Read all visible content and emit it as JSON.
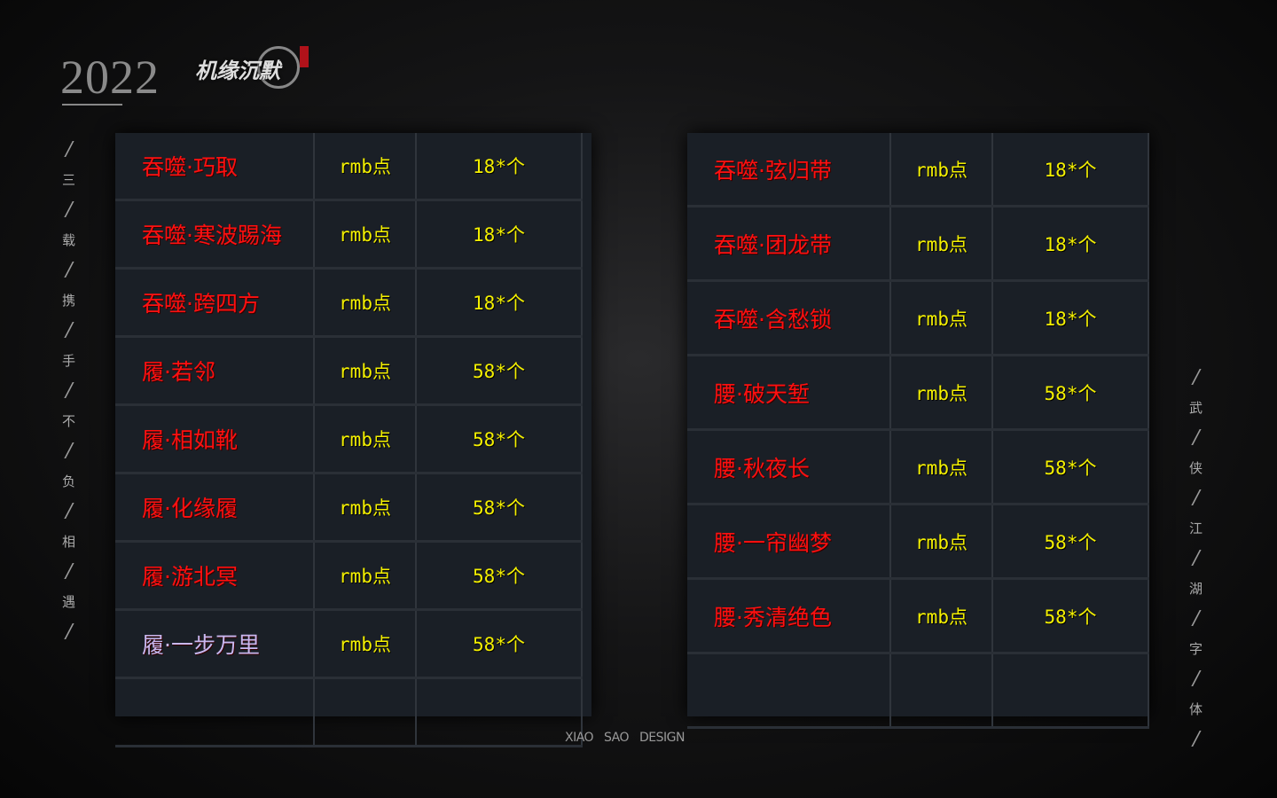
{
  "header": {
    "year": "2022",
    "logo_text": "机缘沉默"
  },
  "left_side_text": [
    "三",
    "载",
    "携",
    "手",
    "不",
    "负",
    "相",
    "遇"
  ],
  "right_side_text": [
    "武",
    "侠",
    "江",
    "湖",
    "字",
    "体"
  ],
  "left_table": [
    {
      "name": "吞噬·巧取",
      "price": "rmb点",
      "qty": "18*个",
      "color": "red"
    },
    {
      "name": "吞噬·寒波踢海",
      "price": "rmb点",
      "qty": "18*个",
      "color": "red"
    },
    {
      "name": "吞噬·跨四方",
      "price": "rmb点",
      "qty": "18*个",
      "color": "red"
    },
    {
      "name": "履·若邻",
      "price": "rmb点",
      "qty": "58*个",
      "color": "red"
    },
    {
      "name": "履·相如靴",
      "price": "rmb点",
      "qty": "58*个",
      "color": "red"
    },
    {
      "name": "履·化缘履",
      "price": "rmb点",
      "qty": "58*个",
      "color": "red"
    },
    {
      "name": "履·游北冥",
      "price": "rmb点",
      "qty": "58*个",
      "color": "red"
    },
    {
      "name": "履·一步万里",
      "price": "rmb点",
      "qty": "58*个",
      "color": "purple"
    }
  ],
  "right_table": [
    {
      "name": "吞噬·弦归带",
      "price": "rmb点",
      "qty": "18*个",
      "color": "red"
    },
    {
      "name": "吞噬·团龙带",
      "price": "rmb点",
      "qty": "18*个",
      "color": "red"
    },
    {
      "name": "吞噬·含愁锁",
      "price": "rmb点",
      "qty": "18*个",
      "color": "red"
    },
    {
      "name": "腰·破天堑",
      "price": "rmb点",
      "qty": "58*个",
      "color": "red"
    },
    {
      "name": "腰·秋夜长",
      "price": "rmb点",
      "qty": "58*个",
      "color": "red"
    },
    {
      "name": "腰·一帘幽梦",
      "price": "rmb点",
      "qty": "58*个",
      "color": "red"
    },
    {
      "name": "腰·秀清绝色",
      "price": "rmb点",
      "qty": "58*个",
      "color": "red"
    }
  ],
  "footer": "XIAO SAO DESIGN",
  "colors": {
    "name_red": "#ff1010",
    "name_purple": "#c8b8f0",
    "price_yellow": "#f4f000"
  }
}
